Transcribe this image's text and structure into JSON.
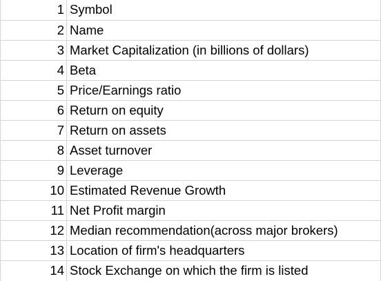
{
  "rows": [
    {
      "num": "1",
      "text": "Symbol"
    },
    {
      "num": "2",
      "text": "Name"
    },
    {
      "num": "3",
      "text": "Market Capitalization (in billions of dollars)"
    },
    {
      "num": "4",
      "text": "Beta"
    },
    {
      "num": "5",
      "text": "Price/Earnings ratio"
    },
    {
      "num": "6",
      "text": "Return on equity"
    },
    {
      "num": "7",
      "text": "Return on assets"
    },
    {
      "num": "8",
      "text": "Asset turnover"
    },
    {
      "num": "9",
      "text": "Leverage"
    },
    {
      "num": "10",
      "text": "Estimated Revenue Growth"
    },
    {
      "num": "11",
      "text": "Net Profit margin"
    },
    {
      "num": "12",
      "text": "Median recommendation(across major brokers)"
    },
    {
      "num": "13",
      "text": "Location of firm's headquarters"
    },
    {
      "num": "14",
      "text": "Stock Exchange on which the firm is listed"
    }
  ]
}
